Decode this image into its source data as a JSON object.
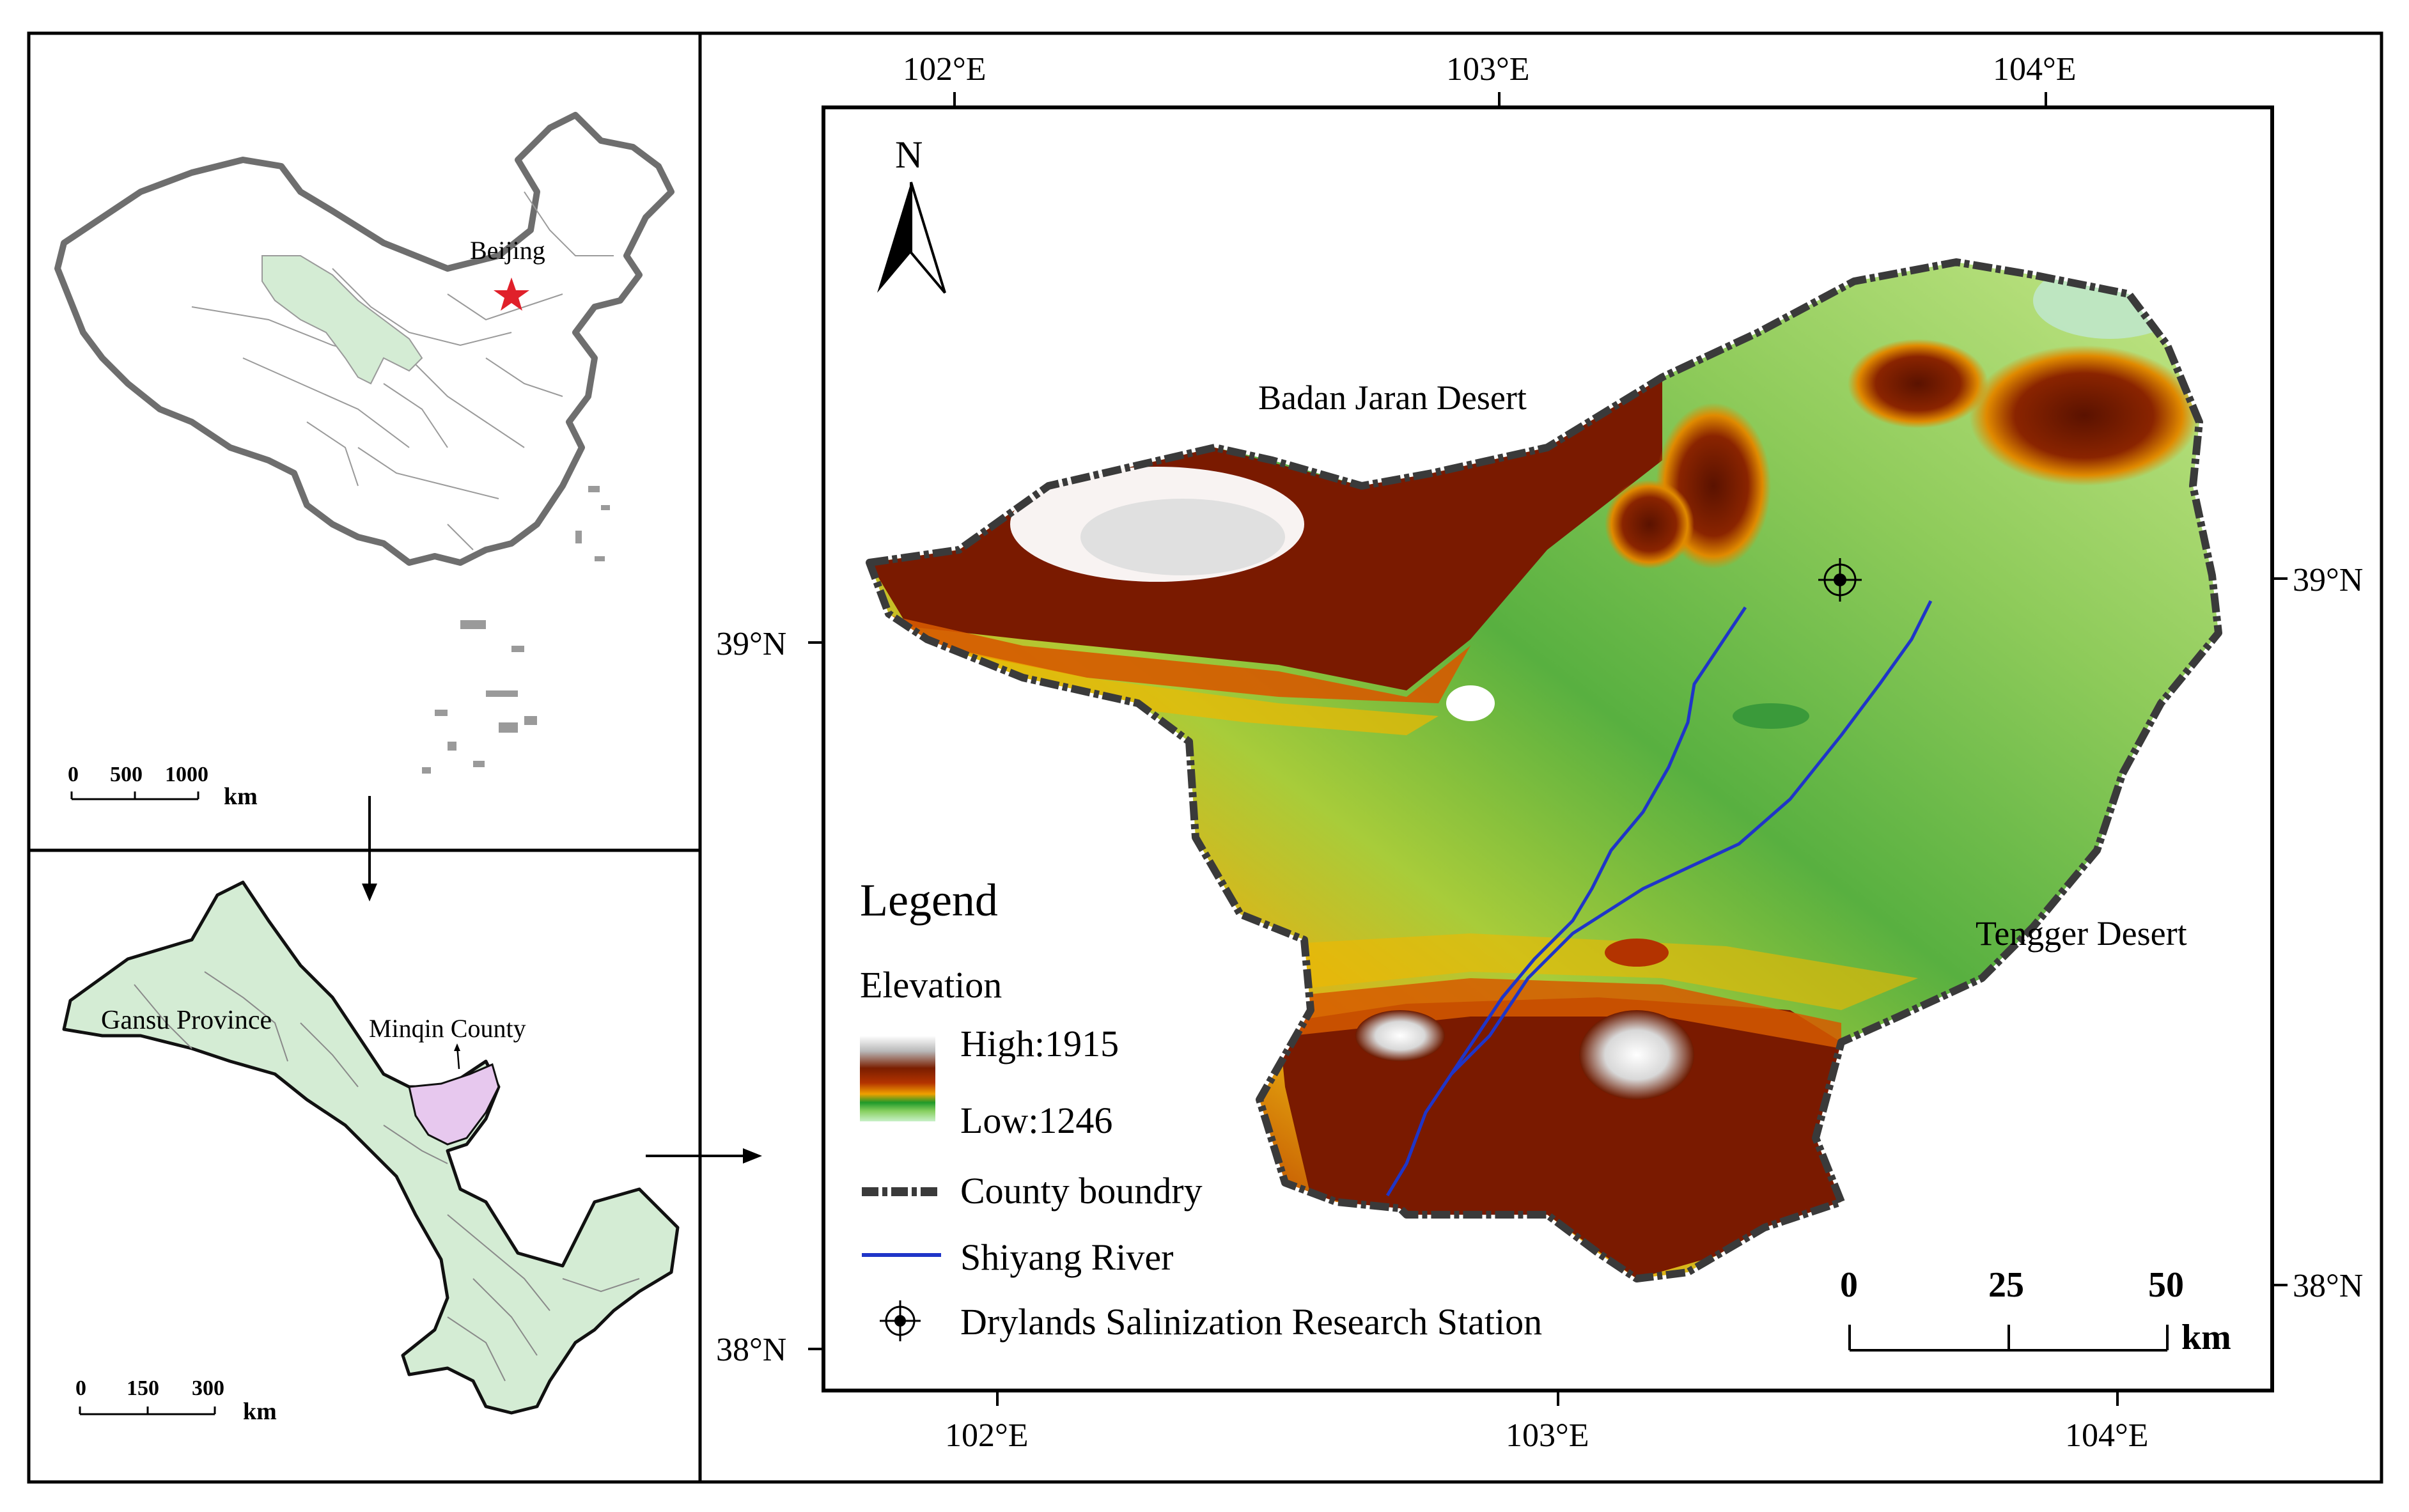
{
  "overview_map": {
    "capital_label": "Beijing",
    "scale": {
      "ticks": [
        "0",
        "500",
        "1000"
      ],
      "unit": "km"
    }
  },
  "province_map": {
    "province_label": "Gansu Province",
    "county_label": "Minqin County",
    "scale": {
      "ticks": [
        "0",
        "150",
        "300"
      ],
      "unit": "km"
    }
  },
  "main_map": {
    "longitude_labels": [
      "102°E",
      "103°E",
      "104°E"
    ],
    "latitude_labels": [
      "39°N",
      "38°N"
    ],
    "north_arrow_label": "N",
    "place_labels": {
      "badan": "Badan Jaran Desert",
      "tengger": "Tengger Desert"
    },
    "legend": {
      "title": "Legend",
      "elevation_title": "Elevation",
      "high_label": "High:1915",
      "low_label": "Low:1246",
      "boundary_label": "County boundry",
      "river_label": "Shiyang River",
      "station_label": "Drylands Salinization Research Station"
    },
    "scale": {
      "ticks": [
        "0",
        "25",
        "50"
      ],
      "unit": "km"
    },
    "colors": {
      "river": "#1f35c8",
      "province_fill": "#d4ecd4",
      "county_fill": "#e7c8ee",
      "star": "#e0202a"
    }
  }
}
